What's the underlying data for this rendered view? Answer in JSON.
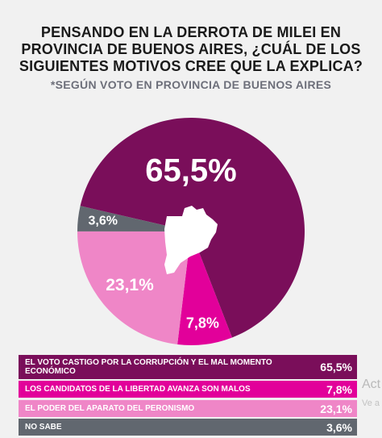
{
  "title_lines": [
    "PENSANDO EN LA DERROTA DE MILEI EN",
    "PROVINCIA DE BUENOS AIRES, ¿CUÁL DE LOS",
    "SIGUIENTES MOTIVOS CREE QUE LA EXPLICA?"
  ],
  "subtitle": "*SEGÚN VOTO EN PROVINCIA DE BUENOS AIRES",
  "watermark": {
    "line1": "Act",
    "line2": "Ve a"
  },
  "colors": {
    "castigo": "#7a0e5a",
    "candidatos": "#e2009a",
    "peronismo": "#ef86c7",
    "no_sabe": "#61676f"
  },
  "chart_data": {
    "type": "pie",
    "categories": [
      "EL VOTO CASTIGO POR LA CORRUPCIÓN Y EL MAL MOMENTO ECONÓMICO",
      "LOS CANDIDATOS DE LA LIBERTAD AVANZA SON MALOS",
      "EL PODER DEL APARATO DEL PERONISMO",
      "NO SABE"
    ],
    "values": [
      65.5,
      7.8,
      23.1,
      3.6
    ],
    "value_labels": [
      "65,5%",
      "7,8%",
      "23,1%",
      "3,6%"
    ],
    "colors": [
      "#7a0e5a",
      "#e2009a",
      "#ef86c7",
      "#61676f"
    ],
    "legend_placement": "bottom"
  }
}
